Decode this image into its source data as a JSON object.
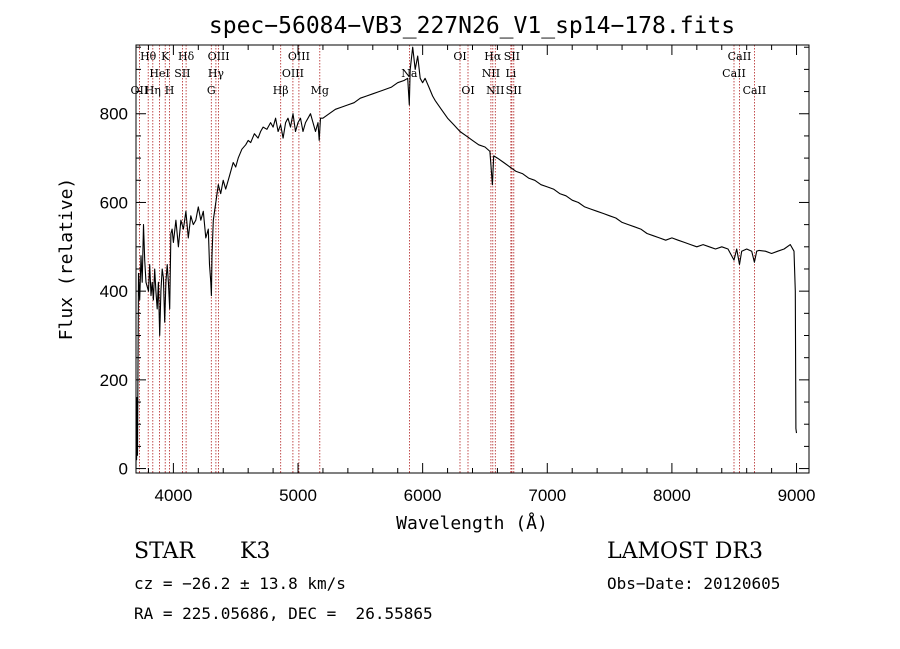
{
  "chart_data": {
    "type": "line",
    "title": "spec−56084−VB3_227N26_V1_sp14−178.fits",
    "xlabel": "Wavelength (Å)",
    "ylabel": "Flux (relative)",
    "xlim": [
      3700,
      9100
    ],
    "ylim": [
      -10,
      955
    ],
    "xticks": [
      4000,
      5000,
      6000,
      7000,
      8000,
      9000
    ],
    "yticks": [
      0,
      200,
      400,
      600,
      800
    ],
    "line_color": "#000000",
    "marker_color": "#b22222",
    "series": [
      {
        "name": "flux",
        "points": [
          [
            3700,
            0
          ],
          [
            3702,
            150
          ],
          [
            3705,
            20
          ],
          [
            3708,
            160
          ],
          [
            3712,
            30
          ],
          [
            3720,
            440
          ],
          [
            3730,
            380
          ],
          [
            3740,
            480
          ],
          [
            3750,
            420
          ],
          [
            3760,
            550
          ],
          [
            3770,
            470
          ],
          [
            3780,
            420
          ],
          [
            3800,
            400
          ],
          [
            3810,
            460
          ],
          [
            3820,
            390
          ],
          [
            3830,
            420
          ],
          [
            3840,
            380
          ],
          [
            3850,
            450
          ],
          [
            3860,
            400
          ],
          [
            3870,
            360
          ],
          [
            3880,
            420
          ],
          [
            3890,
            300
          ],
          [
            3900,
            400
          ],
          [
            3910,
            450
          ],
          [
            3920,
            430
          ],
          [
            3930,
            330
          ],
          [
            3940,
            420
          ],
          [
            3950,
            460
          ],
          [
            3960,
            420
          ],
          [
            3970,
            360
          ],
          [
            3980,
            530
          ],
          [
            3990,
            540
          ],
          [
            4000,
            510
          ],
          [
            4020,
            560
          ],
          [
            4040,
            500
          ],
          [
            4060,
            560
          ],
          [
            4080,
            540
          ],
          [
            4100,
            580
          ],
          [
            4120,
            520
          ],
          [
            4140,
            570
          ],
          [
            4160,
            550
          ],
          [
            4180,
            560
          ],
          [
            4200,
            590
          ],
          [
            4220,
            560
          ],
          [
            4240,
            580
          ],
          [
            4260,
            520
          ],
          [
            4280,
            540
          ],
          [
            4290,
            460
          ],
          [
            4300,
            420
          ],
          [
            4305,
            390
          ],
          [
            4310,
            480
          ],
          [
            4320,
            560
          ],
          [
            4340,
            600
          ],
          [
            4360,
            640
          ],
          [
            4380,
            620
          ],
          [
            4400,
            650
          ],
          [
            4420,
            630
          ],
          [
            4450,
            660
          ],
          [
            4480,
            690
          ],
          [
            4500,
            680
          ],
          [
            4520,
            700
          ],
          [
            4550,
            720
          ],
          [
            4580,
            730
          ],
          [
            4600,
            740
          ],
          [
            4620,
            735
          ],
          [
            4650,
            755
          ],
          [
            4680,
            745
          ],
          [
            4700,
            760
          ],
          [
            4720,
            770
          ],
          [
            4750,
            765
          ],
          [
            4780,
            780
          ],
          [
            4800,
            770
          ],
          [
            4820,
            790
          ],
          [
            4840,
            760
          ],
          [
            4860,
            775
          ],
          [
            4880,
            745
          ],
          [
            4900,
            780
          ],
          [
            4920,
            790
          ],
          [
            4940,
            770
          ],
          [
            4960,
            800
          ],
          [
            4980,
            760
          ],
          [
            5000,
            780
          ],
          [
            5020,
            790
          ],
          [
            5040,
            760
          ],
          [
            5060,
            780
          ],
          [
            5080,
            790
          ],
          [
            5100,
            800
          ],
          [
            5120,
            780
          ],
          [
            5140,
            760
          ],
          [
            5160,
            780
          ],
          [
            5170,
            740
          ],
          [
            5180,
            790
          ],
          [
            5200,
            790
          ],
          [
            5250,
            800
          ],
          [
            5300,
            810
          ],
          [
            5350,
            815
          ],
          [
            5400,
            820
          ],
          [
            5450,
            825
          ],
          [
            5500,
            835
          ],
          [
            5550,
            840
          ],
          [
            5600,
            845
          ],
          [
            5650,
            850
          ],
          [
            5700,
            855
          ],
          [
            5750,
            860
          ],
          [
            5800,
            870
          ],
          [
            5850,
            875
          ],
          [
            5880,
            880
          ],
          [
            5893,
            820
          ],
          [
            5900,
            900
          ],
          [
            5920,
            950
          ],
          [
            5940,
            900
          ],
          [
            5960,
            930
          ],
          [
            5980,
            880
          ],
          [
            6000,
            870
          ],
          [
            6020,
            880
          ],
          [
            6050,
            860
          ],
          [
            6080,
            840
          ],
          [
            6100,
            830
          ],
          [
            6150,
            810
          ],
          [
            6200,
            790
          ],
          [
            6250,
            775
          ],
          [
            6300,
            760
          ],
          [
            6350,
            750
          ],
          [
            6400,
            740
          ],
          [
            6450,
            730
          ],
          [
            6500,
            725
          ],
          [
            6540,
            715
          ],
          [
            6560,
            640
          ],
          [
            6570,
            705
          ],
          [
            6600,
            700
          ],
          [
            6650,
            690
          ],
          [
            6700,
            680
          ],
          [
            6750,
            670
          ],
          [
            6800,
            665
          ],
          [
            6850,
            655
          ],
          [
            6900,
            650
          ],
          [
            6950,
            640
          ],
          [
            7000,
            635
          ],
          [
            7050,
            630
          ],
          [
            7100,
            620
          ],
          [
            7150,
            615
          ],
          [
            7200,
            605
          ],
          [
            7250,
            600
          ],
          [
            7300,
            590
          ],
          [
            7350,
            585
          ],
          [
            7400,
            580
          ],
          [
            7450,
            575
          ],
          [
            7500,
            570
          ],
          [
            7550,
            565
          ],
          [
            7600,
            555
          ],
          [
            7650,
            550
          ],
          [
            7700,
            545
          ],
          [
            7750,
            540
          ],
          [
            7800,
            530
          ],
          [
            7850,
            525
          ],
          [
            7900,
            520
          ],
          [
            7950,
            515
          ],
          [
            8000,
            520
          ],
          [
            8050,
            515
          ],
          [
            8100,
            510
          ],
          [
            8150,
            505
          ],
          [
            8200,
            500
          ],
          [
            8250,
            505
          ],
          [
            8300,
            500
          ],
          [
            8350,
            495
          ],
          [
            8400,
            500
          ],
          [
            8450,
            495
          ],
          [
            8498,
            470
          ],
          [
            8520,
            495
          ],
          [
            8542,
            460
          ],
          [
            8560,
            490
          ],
          [
            8600,
            495
          ],
          [
            8640,
            490
          ],
          [
            8662,
            465
          ],
          [
            8680,
            490
          ],
          [
            8700,
            492
          ],
          [
            8750,
            490
          ],
          [
            8800,
            485
          ],
          [
            8850,
            490
          ],
          [
            8900,
            495
          ],
          [
            8950,
            505
          ],
          [
            8980,
            490
          ],
          [
            8990,
            400
          ],
          [
            8995,
            90
          ],
          [
            9000,
            80
          ]
        ]
      }
    ],
    "lines": [
      {
        "name": "O II 3727",
        "x": 3727
      },
      {
        "name": "H theta",
        "x": 3798
      },
      {
        "name": "H eta",
        "x": 3835
      },
      {
        "name": "He I",
        "x": 3889
      },
      {
        "name": "K",
        "x": 3934
      },
      {
        "name": "H",
        "x": 3969
      },
      {
        "name": "S II 4072",
        "x": 4072
      },
      {
        "name": "H delta",
        "x": 4102
      },
      {
        "name": "G",
        "x": 4304
      },
      {
        "name": "H gamma",
        "x": 4341
      },
      {
        "name": "O III 4363",
        "x": 4363
      },
      {
        "name": "H beta",
        "x": 4861
      },
      {
        "name": "O III 4959",
        "x": 4959
      },
      {
        "name": "O III 5007",
        "x": 5007
      },
      {
        "name": "Mg",
        "x": 5175
      },
      {
        "name": "Na",
        "x": 5894
      },
      {
        "name": "O I 6300",
        "x": 6300
      },
      {
        "name": "O I 6364",
        "x": 6364
      },
      {
        "name": "N II 6548",
        "x": 6548
      },
      {
        "name": "H alpha",
        "x": 6563
      },
      {
        "name": "N II 6583",
        "x": 6583
      },
      {
        "name": "Li",
        "x": 6708
      },
      {
        "name": "S II 6716",
        "x": 6716
      },
      {
        "name": "S II 6731",
        "x": 6731
      },
      {
        "name": "Ca II 8498",
        "x": 8498
      },
      {
        "name": "Ca II 8542",
        "x": 8542
      },
      {
        "name": "Ca II 8662",
        "x": 8662
      }
    ],
    "line_labels": [
      {
        "text": "OII",
        "x": 3727,
        "row": 2,
        "anchor": "middle"
      },
      {
        "text": "Hθ",
        "x": 3798,
        "row": 0,
        "anchor": "middle"
      },
      {
        "text": "Hη",
        "x": 3835,
        "row": 2,
        "anchor": "middle"
      },
      {
        "text": "HeI",
        "x": 3889,
        "row": 1,
        "anchor": "middle"
      },
      {
        "text": "K",
        "x": 3934,
        "row": 0,
        "anchor": "middle"
      },
      {
        "text": "H",
        "x": 3969,
        "row": 2,
        "anchor": "middle"
      },
      {
        "text": "SII",
        "x": 4072,
        "row": 1,
        "anchor": "middle"
      },
      {
        "text": "Hδ",
        "x": 4102,
        "row": 0,
        "anchor": "middle"
      },
      {
        "text": "G",
        "x": 4304,
        "row": 2,
        "anchor": "middle"
      },
      {
        "text": "Hγ",
        "x": 4341,
        "row": 1,
        "anchor": "middle"
      },
      {
        "text": "OIII",
        "x": 4363,
        "row": 0,
        "anchor": "middle"
      },
      {
        "text": "Hβ",
        "x": 4861,
        "row": 2,
        "anchor": "middle"
      },
      {
        "text": "OIII",
        "x": 4959,
        "row": 1,
        "anchor": "middle"
      },
      {
        "text": "OIII",
        "x": 5007,
        "row": 0,
        "anchor": "middle"
      },
      {
        "text": "Mg",
        "x": 5175,
        "row": 2,
        "anchor": "middle"
      },
      {
        "text": "Na",
        "x": 5894,
        "row": 1,
        "anchor": "middle"
      },
      {
        "text": "OI",
        "x": 6300,
        "row": 0,
        "anchor": "middle"
      },
      {
        "text": "OI",
        "x": 6364,
        "row": 2,
        "anchor": "middle"
      },
      {
        "text": "NII",
        "x": 6548,
        "row": 1,
        "anchor": "middle"
      },
      {
        "text": "Hα",
        "x": 6563,
        "row": 0,
        "anchor": "middle"
      },
      {
        "text": "NII",
        "x": 6583,
        "row": 2,
        "anchor": "middle"
      },
      {
        "text": "Li",
        "x": 6708,
        "row": 1,
        "anchor": "middle"
      },
      {
        "text": "SII",
        "x": 6716,
        "row": 0,
        "anchor": "middle"
      },
      {
        "text": "SII",
        "x": 6731,
        "row": 2,
        "anchor": "middle"
      },
      {
        "text": "CaII",
        "x": 8498,
        "row": 1,
        "anchor": "middle"
      },
      {
        "text": "CaII",
        "x": 8542,
        "row": 0,
        "anchor": "middle"
      },
      {
        "text": "CaII",
        "x": 8662,
        "row": 2,
        "anchor": "middle"
      }
    ]
  },
  "info": {
    "object_class": "STAR",
    "subclass": "K3",
    "survey": "LAMOST DR3",
    "redshift": "cz = −26.2 ± 13.8 km/s",
    "obs_date": "Obs−Date: 20120605",
    "coordinates": "RA = 225.05686, DEC =  26.55865"
  }
}
